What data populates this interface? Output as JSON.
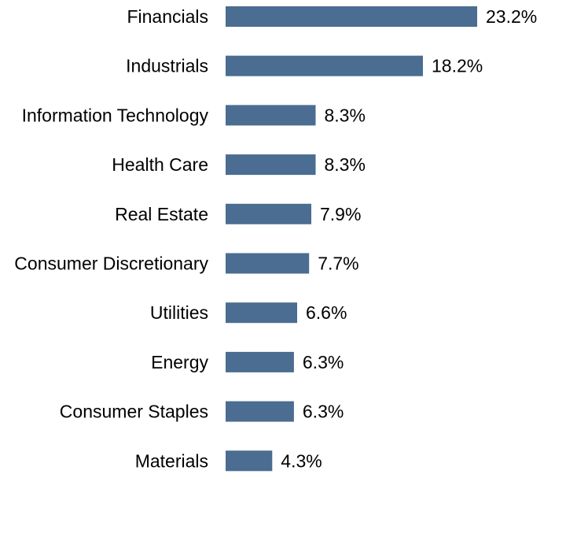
{
  "chart_data": {
    "type": "bar",
    "orientation": "horizontal",
    "categories": [
      "Financials",
      "Industrials",
      "Information Technology",
      "Health Care",
      "Real Estate",
      "Consumer Discretionary",
      "Utilities",
      "Energy",
      "Consumer Staples",
      "Materials"
    ],
    "values": [
      23.2,
      18.2,
      8.3,
      8.3,
      7.9,
      7.7,
      6.6,
      6.3,
      6.3,
      4.3
    ],
    "value_labels": [
      "23.2%",
      "18.2%",
      "8.3%",
      "8.3%",
      "7.9%",
      "7.7%",
      "6.6%",
      "6.3%",
      "6.3%",
      "4.3%"
    ],
    "unit": "%",
    "xlim": [
      0,
      23.2
    ],
    "grid": false,
    "legend": "none",
    "bar_color": "#4a6d91"
  }
}
